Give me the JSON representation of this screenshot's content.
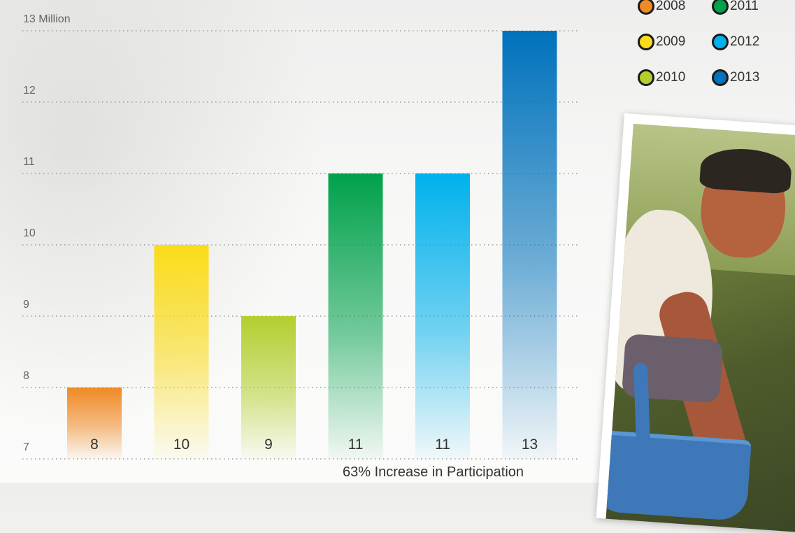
{
  "chart_data": {
    "type": "bar",
    "categories": [
      "2008",
      "2009",
      "2010",
      "2011",
      "2012",
      "2013"
    ],
    "values": [
      8,
      10,
      9,
      11,
      11,
      13
    ],
    "value_labels": [
      "8",
      "10",
      "9",
      "11",
      "11",
      "13"
    ],
    "bar_colors": [
      "#f08a24",
      "#fbdc18",
      "#b2cf2e",
      "#00a14b",
      "#00b1ec",
      "#0072bc"
    ],
    "y_ticks": [
      7,
      8,
      9,
      10,
      11,
      12,
      13
    ],
    "y_tick_labels": [
      "7",
      "8",
      "9",
      "10",
      "11",
      "12",
      "13 Million"
    ],
    "ylim": [
      7,
      13
    ],
    "grid": true,
    "title": "",
    "xlabel": "",
    "ylabel": "",
    "annotation": "63% Increase in Participation",
    "legend": {
      "placement": "top-right",
      "entries": [
        {
          "label": "2008",
          "color": "#f08a24"
        },
        {
          "label": "2009",
          "color": "#fbdc18"
        },
        {
          "label": "2010",
          "color": "#b2cf2e"
        },
        {
          "label": "2011",
          "color": "#00a14b"
        },
        {
          "label": "2012",
          "color": "#00b1ec"
        },
        {
          "label": "2013",
          "color": "#0072bc"
        }
      ]
    }
  },
  "photo": {
    "subject": "man-gardening-photo"
  }
}
